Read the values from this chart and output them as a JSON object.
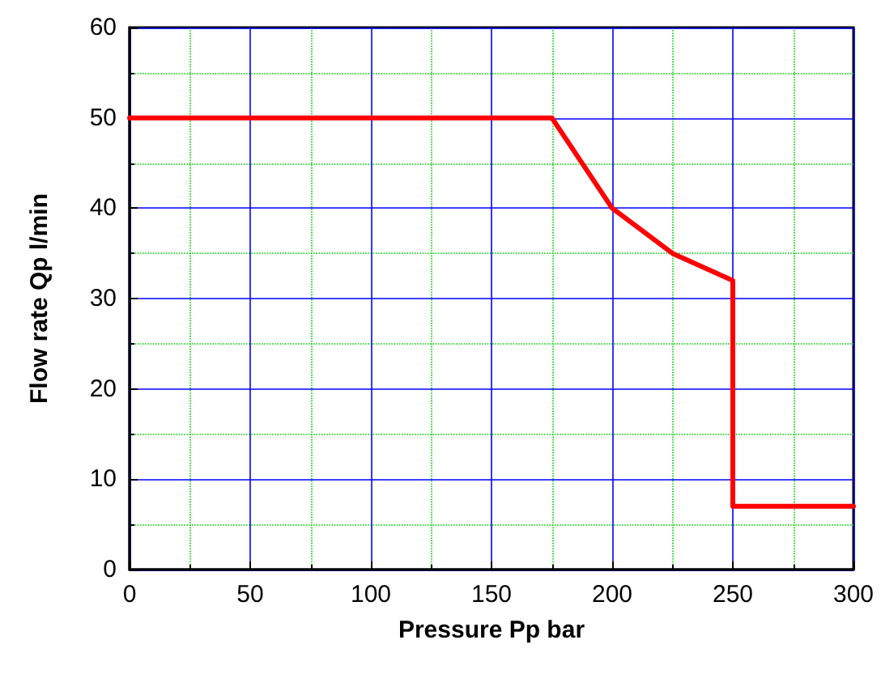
{
  "chart_data": {
    "type": "line",
    "xlabel": "Pressure Pp bar",
    "ylabel": "Flow rate Qp l/min",
    "x": [
      0,
      175,
      200,
      225,
      250,
      250,
      300
    ],
    "series": [
      {
        "color": "#ff0000",
        "values": [
          50,
          50,
          40,
          35,
          32,
          7,
          7
        ]
      }
    ],
    "xlim": [
      0,
      300
    ],
    "xticks": [
      0,
      {
        "value": 25,
        "label": null
      },
      50,
      {
        "value": 75,
        "label": null
      },
      100,
      {
        "value": 125,
        "label": null
      },
      150,
      {
        "value": 175,
        "label": null
      },
      200,
      {
        "value": 225,
        "label": null
      },
      250,
      {
        "value": 275,
        "label": null
      },
      300
    ],
    "ylim": [
      0,
      60
    ],
    "yticks": [
      0,
      {
        "value": 5,
        "label": null
      },
      10,
      {
        "value": 15,
        "label": null
      },
      20,
      {
        "value": 25,
        "label": null
      },
      30,
      {
        "value": 35,
        "label": null
      },
      40,
      {
        "value": 45,
        "label": null
      },
      50,
      {
        "value": 55,
        "label": null
      },
      60
    ],
    "grid": true,
    "marker": "none",
    "line_style": "solid"
  }
}
